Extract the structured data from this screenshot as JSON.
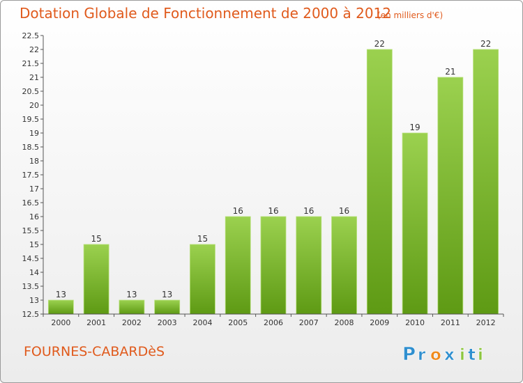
{
  "title": "Dotation Globale de Fonctionnement de 2000 à 2012",
  "subtitle": "(en milliers d'€)",
  "commune": "FOURNES-CABARDèS",
  "logo": {
    "text": "Proxiti",
    "letters": [
      "P",
      "r",
      "o",
      "x",
      "i",
      "t",
      "i"
    ],
    "colors": [
      "#2f8fcf",
      "#2f8fcf",
      "#f08a1c",
      "#2f8fcf",
      "#8cc63f",
      "#2f8fcf",
      "#8cc63f"
    ]
  },
  "colors": {
    "bar_top": "#9bd14f",
    "bar_bottom": "#5e9a14",
    "text": "#e05a1c"
  },
  "chart_data": {
    "type": "bar",
    "categories": [
      "2000",
      "2001",
      "2002",
      "2003",
      "2004",
      "2005",
      "2006",
      "2007",
      "2008",
      "2009",
      "2010",
      "2011",
      "2012"
    ],
    "values": [
      13,
      15,
      13,
      13,
      15,
      16,
      16,
      16,
      16,
      22,
      19,
      21,
      22
    ],
    "data_labels": [
      "13",
      "15",
      "13",
      "13",
      "15",
      "16",
      "16",
      "16",
      "16",
      "22",
      "19",
      "21",
      "22"
    ],
    "ylim": [
      12.5,
      22.5
    ],
    "yticks": [
      12.5,
      13,
      13.5,
      14,
      14.5,
      15,
      15.5,
      16,
      16.5,
      17,
      17.5,
      18,
      18.5,
      19,
      19.5,
      20,
      20.5,
      21,
      21.5,
      22,
      22.5
    ],
    "ytick_labels": [
      "12.5",
      "13",
      "13.5",
      "14",
      "14.5",
      "15",
      "15.5",
      "16",
      "16.5",
      "17",
      "17.5",
      "18",
      "18.5",
      "19",
      "19.5",
      "20",
      "20.5",
      "21",
      "21.5",
      "22",
      "22.5"
    ],
    "grid": false
  }
}
